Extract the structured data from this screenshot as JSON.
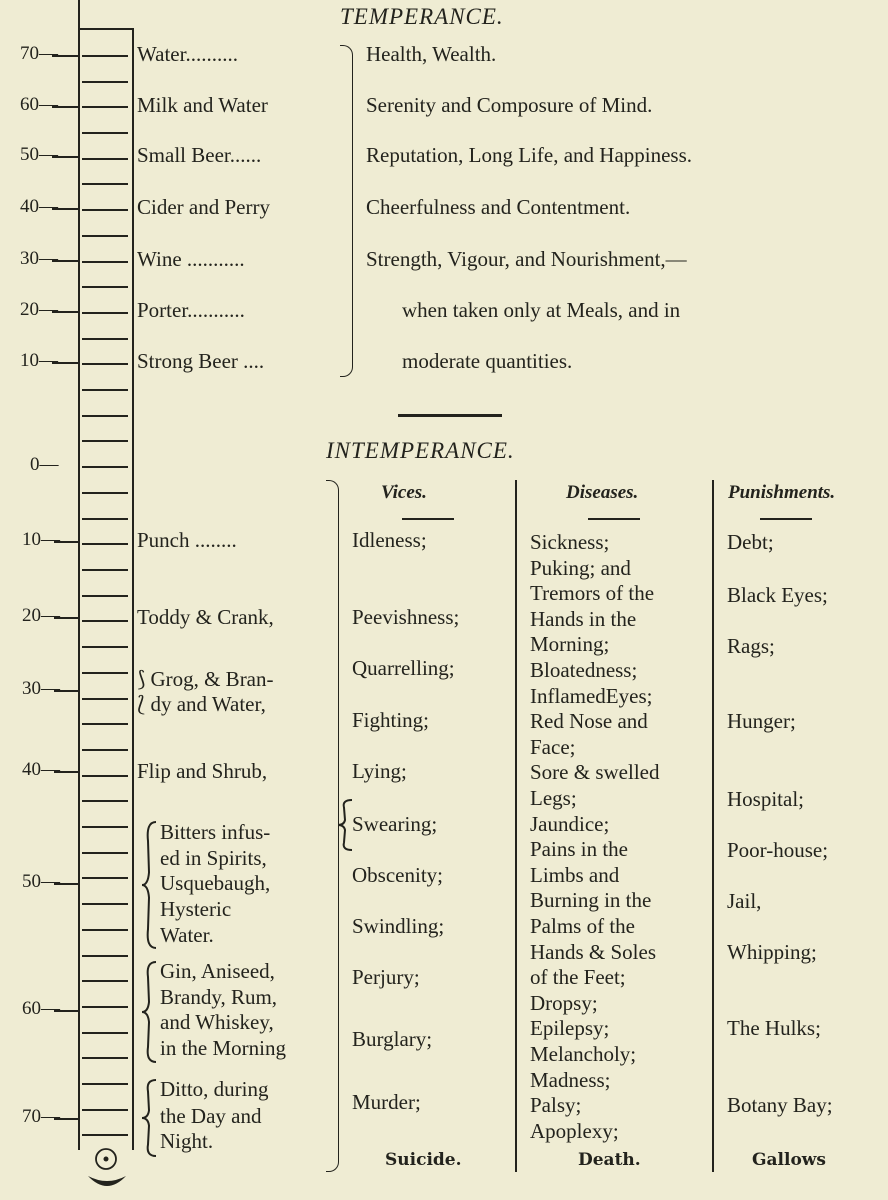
{
  "temperance": {
    "title": "TEMPERANCE.",
    "scale": [
      "70—",
      "60—",
      "50—",
      "40—",
      "30—",
      "20—",
      "10—"
    ],
    "liquors": [
      "Water..........",
      "Milk and Water",
      "Small Beer......",
      "Cider and Perry",
      "Wine ...........",
      "Porter...........",
      "Strong Beer ...."
    ],
    "effects": [
      "Health, Wealth.",
      "Serenity and Composure of Mind.",
      "Reputation, Long Life, and Happiness.",
      "Cheerfulness and Contentment.",
      "Strength, Vigour, and Nourishment,—",
      "when taken only at Meals, and in",
      "moderate quantities."
    ]
  },
  "intemperance": {
    "title": "INTEMPERANCE.",
    "zero": "0—",
    "scale": [
      "10—",
      "20—",
      "30—",
      "40—",
      "50—",
      "60—",
      "70—"
    ],
    "headers": {
      "vices": "Vices.",
      "diseases": "Diseases.",
      "punishments": "Punishments."
    },
    "liquors": [
      "Punch ........",
      "Toddy & Crank,",
      "⟆ Grog, & Bran-",
      "⟅ dy and Water,",
      "Flip and Shrub,",
      "Bitters infus-",
      "ed in Spirits,",
      "Usquebaugh,",
      "Hysteric",
      "Water.",
      "Gin, Aniseed,",
      "Brandy, Rum,",
      "and Whiskey,",
      "in the Morning",
      "Ditto, during",
      "the Day and",
      "Night."
    ],
    "vices": [
      "Idleness;",
      "Peevishness;",
      "Quarrelling;",
      "Fighting;",
      "Lying;",
      "Swearing;",
      "Obscenity;",
      "Swindling;",
      "Perjury;",
      "Burglary;",
      "Murder;"
    ],
    "vices_end": "Suicide.",
    "diseases": [
      "Sickness;",
      "Puking; and",
      "Tremors of the",
      "Hands in the",
      "Morning;",
      "Bloatedness;",
      "InflamedEyes;",
      "Red Nose and",
      "Face;",
      "Sore & swelled",
      "Legs;",
      "Jaundice;",
      "Pains in the",
      "Limbs and",
      "Burning in the",
      "Palms of the",
      "Hands & Soles",
      "of the Feet;",
      "Dropsy;",
      "Epilepsy;",
      "Melancholy;",
      "Madness;",
      "Palsy;",
      "Apoplexy;"
    ],
    "diseases_end": "Death.",
    "punishments": [
      "Debt;",
      "Black Eyes;",
      "Rags;",
      "Hunger;",
      "Hospital;",
      "Poor-house;",
      "Jail,",
      "Whipping;",
      "The Hulks;",
      "Botany Bay;"
    ],
    "punishments_end": "Gallows"
  },
  "bulb_icon": "circled-dot"
}
